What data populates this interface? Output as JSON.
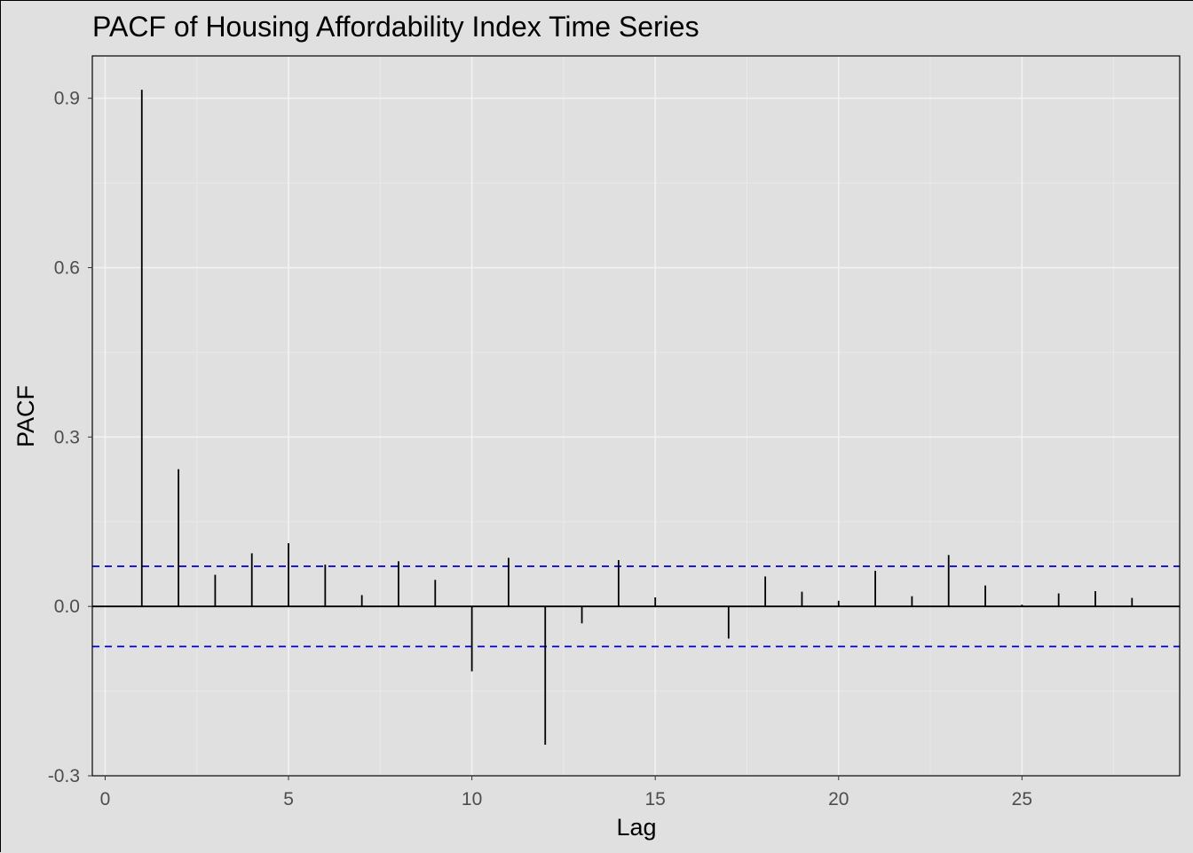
{
  "chart_data": {
    "type": "bar",
    "title": "PACF of Housing Affordability Index Time Series",
    "xlabel": "Lag",
    "ylabel": "PACF",
    "xlim": [
      -0.35,
      29.3
    ],
    "ylim": [
      -0.3,
      0.975
    ],
    "x_ticks": [
      0,
      5,
      10,
      15,
      20,
      25
    ],
    "x_tick_labels": [
      "0",
      "5",
      "10",
      "15",
      "20",
      "25"
    ],
    "y_ticks": [
      -0.3,
      0.0,
      0.3,
      0.6,
      0.9
    ],
    "y_tick_labels": [
      "-0.3",
      "0.0",
      "0.3",
      "0.6",
      "0.9"
    ],
    "grid": true,
    "confidence_bound": 0.071,
    "lags": [
      1,
      2,
      3,
      4,
      5,
      6,
      7,
      8,
      9,
      10,
      11,
      12,
      13,
      14,
      15,
      16,
      17,
      18,
      19,
      20,
      21,
      22,
      23,
      24,
      25,
      26,
      27,
      28
    ],
    "values": [
      0.915,
      0.243,
      0.056,
      0.094,
      0.112,
      0.074,
      0.02,
      0.08,
      0.047,
      -0.115,
      0.086,
      -0.245,
      -0.03,
      0.082,
      0.016,
      0.0,
      -0.057,
      0.053,
      0.026,
      0.01,
      0.063,
      0.018,
      0.091,
      0.037,
      0.003,
      0.023,
      0.027,
      0.015
    ]
  }
}
